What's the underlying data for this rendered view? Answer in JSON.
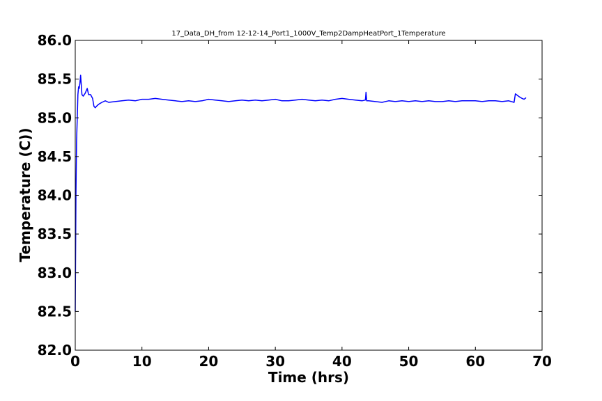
{
  "chart_data": {
    "type": "line",
    "title": "17_Data_DH_from 12-12-14_Port1_1000V_Temp2DampHeatPort_1Temperature",
    "xlabel": "Time (hrs)",
    "ylabel": "Temperature (C))",
    "xlim": [
      0,
      70
    ],
    "ylim": [
      82.0,
      86.0
    ],
    "xticks": [
      0,
      10,
      20,
      30,
      40,
      50,
      60,
      70
    ],
    "xtick_labels": [
      "0",
      "10",
      "20",
      "30",
      "40",
      "50",
      "60",
      "70"
    ],
    "yticks": [
      82.0,
      82.5,
      83.0,
      83.5,
      84.0,
      84.5,
      85.0,
      85.5,
      86.0
    ],
    "ytick_labels": [
      "82.0",
      "82.5",
      "83.0",
      "83.5",
      "84.0",
      "84.5",
      "85.0",
      "85.5",
      "86.0"
    ],
    "grid": false,
    "series": [
      {
        "color": "#0000ff",
        "x": [
          0.0,
          0.1,
          0.2,
          0.3,
          0.4,
          0.5,
          0.6,
          0.7,
          0.8,
          1.0,
          1.2,
          1.5,
          1.8,
          2.0,
          2.3,
          2.6,
          2.8,
          3.0,
          3.3,
          3.6,
          4.0,
          4.5,
          5.0,
          6.0,
          7.0,
          8.0,
          9.0,
          10.0,
          11.0,
          12.0,
          13.0,
          14.0,
          15.0,
          16.0,
          17.0,
          18.0,
          19.0,
          20.0,
          21.0,
          22.0,
          23.0,
          24.0,
          25.0,
          26.0,
          27.0,
          28.0,
          29.0,
          30.0,
          31.0,
          32.0,
          33.0,
          34.0,
          35.0,
          36.0,
          37.0,
          38.0,
          39.0,
          40.0,
          41.0,
          42.0,
          43.0,
          43.5,
          43.6,
          43.7,
          44.0,
          45.0,
          46.0,
          47.0,
          48.0,
          49.0,
          50.0,
          51.0,
          52.0,
          53.0,
          54.0,
          55.0,
          56.0,
          57.0,
          58.0,
          59.0,
          60.0,
          61.0,
          62.0,
          63.0,
          64.0,
          65.0,
          65.8,
          66.0,
          66.3,
          66.6,
          67.0,
          67.3,
          67.6
        ],
        "y": [
          82.5,
          84.0,
          84.7,
          85.0,
          85.3,
          85.4,
          85.38,
          85.45,
          85.55,
          85.3,
          85.28,
          85.32,
          85.38,
          85.3,
          85.3,
          85.25,
          85.15,
          85.13,
          85.16,
          85.18,
          85.2,
          85.22,
          85.2,
          85.21,
          85.22,
          85.23,
          85.22,
          85.24,
          85.24,
          85.25,
          85.24,
          85.23,
          85.22,
          85.21,
          85.22,
          85.21,
          85.22,
          85.24,
          85.23,
          85.22,
          85.21,
          85.22,
          85.23,
          85.22,
          85.23,
          85.22,
          85.23,
          85.24,
          85.22,
          85.22,
          85.23,
          85.24,
          85.23,
          85.22,
          85.23,
          85.22,
          85.24,
          85.25,
          85.24,
          85.23,
          85.22,
          85.23,
          85.33,
          85.22,
          85.22,
          85.21,
          85.2,
          85.22,
          85.21,
          85.22,
          85.21,
          85.22,
          85.21,
          85.22,
          85.21,
          85.21,
          85.22,
          85.21,
          85.22,
          85.22,
          85.22,
          85.21,
          85.22,
          85.22,
          85.21,
          85.22,
          85.2,
          85.31,
          85.29,
          85.27,
          85.25,
          85.24,
          85.26
        ]
      }
    ]
  }
}
